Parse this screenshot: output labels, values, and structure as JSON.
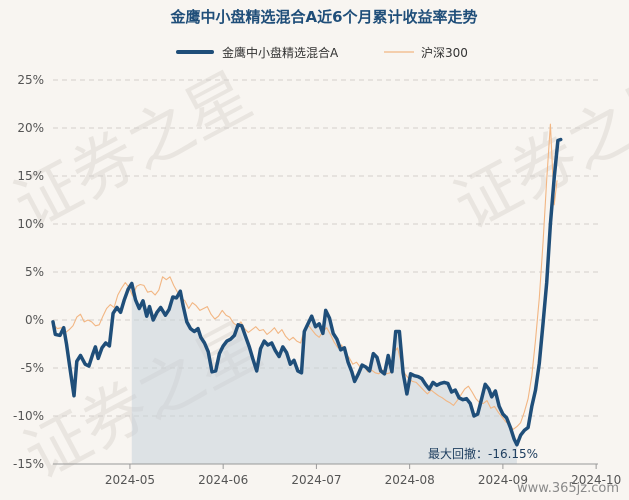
{
  "chart_data": {
    "type": "line",
    "title": "金鹰中小盘精选混合A近6个月累计收益率走势",
    "xlabel": "",
    "ylabel": "",
    "ylim": [
      -15,
      25
    ],
    "yticks": [
      -15,
      -10,
      -5,
      0,
      5,
      10,
      15,
      20,
      25
    ],
    "ytick_labels": [
      "-15%",
      "-10%",
      "-5%",
      "0%",
      "5%",
      "10%",
      "15%",
      "20%",
      "25%"
    ],
    "xticks": [
      "2024-05",
      "2024-06",
      "2024-07",
      "2024-08",
      "2024-09",
      "2024-10"
    ],
    "xtick_positions": [
      1,
      2,
      3,
      4,
      5,
      6
    ],
    "x_range": [
      0.175,
      6.02
    ],
    "grid": "horizontal-dashed",
    "legend_position": "top-center",
    "annotation": "最大回撤：-16.15%",
    "drawdown_peak_x": 1.02,
    "drawdown_trough_x": 5.15,
    "series": [
      {
        "name": "金鹰中小盘精选混合A",
        "color": "#1f4e79",
        "points": [
          [
            0.175,
            -0.2
          ],
          [
            0.2,
            -1.5
          ],
          [
            0.25,
            -1.6
          ],
          [
            0.29,
            -0.8
          ],
          [
            0.32,
            -2.5
          ],
          [
            0.36,
            -5.2
          ],
          [
            0.4,
            -7.9
          ],
          [
            0.43,
            -4.3
          ],
          [
            0.47,
            -3.7
          ],
          [
            0.52,
            -4.6
          ],
          [
            0.56,
            -4.8
          ],
          [
            0.6,
            -3.6
          ],
          [
            0.63,
            -2.8
          ],
          [
            0.66,
            -4.0
          ],
          [
            0.7,
            -2.9
          ],
          [
            0.74,
            -2.4
          ],
          [
            0.78,
            -2.7
          ],
          [
            0.82,
            0.7
          ],
          [
            0.86,
            1.3
          ],
          [
            0.9,
            0.8
          ],
          [
            0.94,
            2.1
          ],
          [
            0.98,
            3.2
          ],
          [
            1.02,
            3.8
          ],
          [
            1.06,
            2.1
          ],
          [
            1.1,
            1.2
          ],
          [
            1.14,
            2.0
          ],
          [
            1.18,
            0.4
          ],
          [
            1.21,
            1.4
          ],
          [
            1.25,
            0.0
          ],
          [
            1.29,
            0.8
          ],
          [
            1.33,
            1.3
          ],
          [
            1.38,
            0.5
          ],
          [
            1.42,
            1.1
          ],
          [
            1.46,
            2.4
          ],
          [
            1.5,
            2.3
          ],
          [
            1.54,
            3.0
          ],
          [
            1.57,
            1.5
          ],
          [
            1.61,
            -0.2
          ],
          [
            1.65,
            -0.9
          ],
          [
            1.69,
            -1.2
          ],
          [
            1.73,
            -0.9
          ],
          [
            1.76,
            -1.8
          ],
          [
            1.8,
            -2.4
          ],
          [
            1.84,
            -3.3
          ],
          [
            1.88,
            -5.4
          ],
          [
            1.92,
            -5.3
          ],
          [
            1.96,
            -3.5
          ],
          [
            2.0,
            -2.7
          ],
          [
            2.04,
            -2.2
          ],
          [
            2.08,
            -2.0
          ],
          [
            2.12,
            -1.6
          ],
          [
            2.16,
            -0.5
          ],
          [
            2.2,
            -0.6
          ],
          [
            2.24,
            -1.7
          ],
          [
            2.28,
            -2.8
          ],
          [
            2.32,
            -4.1
          ],
          [
            2.36,
            -5.3
          ],
          [
            2.4,
            -3.0
          ],
          [
            2.44,
            -2.2
          ],
          [
            2.48,
            -2.6
          ],
          [
            2.52,
            -2.4
          ],
          [
            2.56,
            -3.2
          ],
          [
            2.6,
            -3.8
          ],
          [
            2.64,
            -2.8
          ],
          [
            2.68,
            -3.4
          ],
          [
            2.72,
            -4.6
          ],
          [
            2.76,
            -4.2
          ],
          [
            2.8,
            -5.3
          ],
          [
            2.84,
            -5.5
          ],
          [
            2.87,
            -1.2
          ],
          [
            2.91,
            -0.4
          ],
          [
            2.95,
            0.4
          ],
          [
            2.99,
            -0.7
          ],
          [
            3.03,
            -0.4
          ],
          [
            3.07,
            -1.4
          ],
          [
            3.1,
            1.0
          ],
          [
            3.14,
            0.2
          ],
          [
            3.18,
            -1.4
          ],
          [
            3.22,
            -2.0
          ],
          [
            3.26,
            -3.1
          ],
          [
            3.3,
            -2.9
          ],
          [
            3.34,
            -4.4
          ],
          [
            3.38,
            -5.4
          ],
          [
            3.41,
            -6.4
          ],
          [
            3.45,
            -5.6
          ],
          [
            3.49,
            -4.7
          ],
          [
            3.53,
            -4.9
          ],
          [
            3.57,
            -5.3
          ],
          [
            3.61,
            -3.5
          ],
          [
            3.65,
            -3.9
          ],
          [
            3.69,
            -5.3
          ],
          [
            3.73,
            -5.6
          ],
          [
            3.77,
            -3.7
          ],
          [
            3.81,
            -5.4
          ],
          [
            3.85,
            -1.2
          ],
          [
            3.89,
            -1.2
          ],
          [
            3.93,
            -5.5
          ],
          [
            3.97,
            -7.7
          ],
          [
            4.01,
            -5.6
          ],
          [
            4.05,
            -5.8
          ],
          [
            4.09,
            -5.9
          ],
          [
            4.13,
            -6.1
          ],
          [
            4.17,
            -6.7
          ],
          [
            4.21,
            -7.2
          ],
          [
            4.25,
            -6.5
          ],
          [
            4.29,
            -6.8
          ],
          [
            4.33,
            -6.6
          ],
          [
            4.37,
            -6.5
          ],
          [
            4.41,
            -6.6
          ],
          [
            4.45,
            -7.5
          ],
          [
            4.49,
            -7.3
          ],
          [
            4.53,
            -8.1
          ],
          [
            4.57,
            -8.3
          ],
          [
            4.61,
            -8.2
          ],
          [
            4.65,
            -8.7
          ],
          [
            4.69,
            -10.0
          ],
          [
            4.73,
            -9.8
          ],
          [
            4.77,
            -8.3
          ],
          [
            4.81,
            -6.7
          ],
          [
            4.85,
            -7.2
          ],
          [
            4.88,
            -8.0
          ],
          [
            4.92,
            -7.4
          ],
          [
            4.96,
            -9.0
          ],
          [
            5.0,
            -9.8
          ],
          [
            5.04,
            -10.2
          ],
          [
            5.08,
            -11.2
          ],
          [
            5.12,
            -12.4
          ],
          [
            5.15,
            -13.0
          ],
          [
            5.19,
            -12.0
          ],
          [
            5.23,
            -11.5
          ],
          [
            5.27,
            -11.2
          ],
          [
            5.31,
            -9.0
          ],
          [
            5.35,
            -7.3
          ],
          [
            5.39,
            -4.5
          ],
          [
            5.43,
            -0.4
          ],
          [
            5.47,
            3.9
          ],
          [
            5.51,
            10.0
          ],
          [
            5.55,
            14.8
          ],
          [
            5.59,
            18.7
          ],
          [
            5.62,
            18.8
          ]
        ]
      },
      {
        "name": "沪深300",
        "color": "#f2b683",
        "points": [
          [
            0.175,
            -0.4
          ],
          [
            0.22,
            -0.9
          ],
          [
            0.27,
            -0.8
          ],
          [
            0.31,
            -1.3
          ],
          [
            0.35,
            -1.0
          ],
          [
            0.39,
            -0.6
          ],
          [
            0.43,
            0.3
          ],
          [
            0.47,
            0.6
          ],
          [
            0.51,
            -0.2
          ],
          [
            0.55,
            0.0
          ],
          [
            0.59,
            -0.2
          ],
          [
            0.63,
            -0.6
          ],
          [
            0.67,
            -0.5
          ],
          [
            0.71,
            0.4
          ],
          [
            0.75,
            1.2
          ],
          [
            0.79,
            1.6
          ],
          [
            0.83,
            1.3
          ],
          [
            0.87,
            2.6
          ],
          [
            0.91,
            3.3
          ],
          [
            0.95,
            3.9
          ],
          [
            0.99,
            3.4
          ],
          [
            1.03,
            2.5
          ],
          [
            1.07,
            3.5
          ],
          [
            1.11,
            3.7
          ],
          [
            1.15,
            3.6
          ],
          [
            1.19,
            2.9
          ],
          [
            1.23,
            3.0
          ],
          [
            1.27,
            2.6
          ],
          [
            1.31,
            3.1
          ],
          [
            1.35,
            4.5
          ],
          [
            1.39,
            4.2
          ],
          [
            1.43,
            4.5
          ],
          [
            1.47,
            3.6
          ],
          [
            1.51,
            2.9
          ],
          [
            1.55,
            2.3
          ],
          [
            1.59,
            2.0
          ],
          [
            1.63,
            1.2
          ],
          [
            1.67,
            1.8
          ],
          [
            1.71,
            1.5
          ],
          [
            1.75,
            1.0
          ],
          [
            1.79,
            1.2
          ],
          [
            1.83,
            1.4
          ],
          [
            1.87,
            0.6
          ],
          [
            1.91,
            0.1
          ],
          [
            1.95,
            0.4
          ],
          [
            1.99,
            1.0
          ],
          [
            2.03,
            0.5
          ],
          [
            2.07,
            0.3
          ],
          [
            2.11,
            -0.3
          ],
          [
            2.15,
            -0.6
          ],
          [
            2.19,
            -0.2
          ],
          [
            2.23,
            -0.9
          ],
          [
            2.27,
            -1.3
          ],
          [
            2.31,
            -1.0
          ],
          [
            2.35,
            -0.7
          ],
          [
            2.39,
            -1.1
          ],
          [
            2.43,
            -1.0
          ],
          [
            2.47,
            -1.5
          ],
          [
            2.51,
            -1.2
          ],
          [
            2.55,
            -0.8
          ],
          [
            2.59,
            -1.4
          ],
          [
            2.63,
            -1.0
          ],
          [
            2.67,
            -1.7
          ],
          [
            2.71,
            -2.1
          ],
          [
            2.75,
            -1.8
          ],
          [
            2.79,
            -2.2
          ],
          [
            2.83,
            -2.4
          ],
          [
            2.87,
            -1.0
          ],
          [
            2.91,
            -0.5
          ],
          [
            2.95,
            -1.0
          ],
          [
            2.99,
            -1.5
          ],
          [
            3.03,
            -1.8
          ],
          [
            3.07,
            -1.2
          ],
          [
            3.11,
            -0.8
          ],
          [
            3.15,
            -1.5
          ],
          [
            3.19,
            -2.3
          ],
          [
            3.23,
            -2.9
          ],
          [
            3.27,
            -2.6
          ],
          [
            3.31,
            -3.5
          ],
          [
            3.35,
            -3.9
          ],
          [
            3.39,
            -4.6
          ],
          [
            3.43,
            -4.4
          ],
          [
            3.47,
            -4.9
          ],
          [
            3.51,
            -4.7
          ],
          [
            3.55,
            -5.4
          ],
          [
            3.59,
            -5.2
          ],
          [
            3.63,
            -5.5
          ],
          [
            3.67,
            -5.6
          ],
          [
            3.71,
            -5.2
          ],
          [
            3.75,
            -5.6
          ],
          [
            3.79,
            -5.5
          ],
          [
            3.83,
            -3.4
          ],
          [
            3.87,
            -2.9
          ],
          [
            3.91,
            -4.5
          ],
          [
            3.95,
            -5.6
          ],
          [
            3.99,
            -6.1
          ],
          [
            4.03,
            -6.4
          ],
          [
            4.07,
            -6.5
          ],
          [
            4.11,
            -6.9
          ],
          [
            4.15,
            -7.3
          ],
          [
            4.19,
            -7.7
          ],
          [
            4.23,
            -7.3
          ],
          [
            4.27,
            -7.6
          ],
          [
            4.31,
            -7.9
          ],
          [
            4.35,
            -8.1
          ],
          [
            4.39,
            -8.4
          ],
          [
            4.43,
            -8.6
          ],
          [
            4.47,
            -8.9
          ],
          [
            4.51,
            -8.4
          ],
          [
            4.55,
            -7.8
          ],
          [
            4.59,
            -7.2
          ],
          [
            4.63,
            -6.9
          ],
          [
            4.67,
            -7.5
          ],
          [
            4.71,
            -8.2
          ],
          [
            4.75,
            -8.6
          ],
          [
            4.79,
            -8.7
          ],
          [
            4.83,
            -8.4
          ],
          [
            4.87,
            -9.2
          ],
          [
            4.91,
            -9.0
          ],
          [
            4.95,
            -9.6
          ],
          [
            4.99,
            -10.1
          ],
          [
            5.03,
            -10.6
          ],
          [
            5.07,
            -10.9
          ],
          [
            5.11,
            -11.4
          ],
          [
            5.15,
            -11.1
          ],
          [
            5.19,
            -10.7
          ],
          [
            5.23,
            -9.6
          ],
          [
            5.27,
            -8.2
          ],
          [
            5.31,
            -5.8
          ],
          [
            5.35,
            -2.1
          ],
          [
            5.39,
            2.3
          ],
          [
            5.43,
            8.0
          ],
          [
            5.47,
            14.6
          ],
          [
            5.51,
            20.4
          ],
          [
            5.55,
            12.0
          ],
          [
            5.58,
            14.5
          ]
        ]
      }
    ]
  },
  "watermark": {
    "text1": "证券之星",
    "text2": "证券之星",
    "text3": "证券之星"
  },
  "footer": {
    "site": "www.365jz.com"
  }
}
